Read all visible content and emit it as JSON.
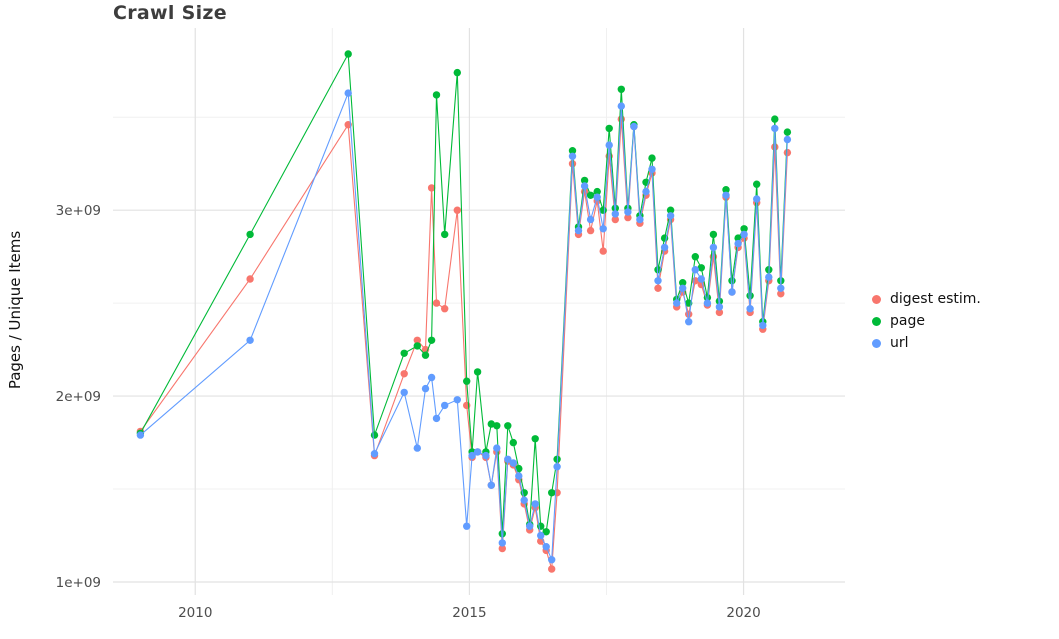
{
  "chart_data": {
    "type": "line",
    "title": "Crawl Size",
    "xlabel": "",
    "ylabel": "Pages / Unique Items",
    "y_unit": 1000000000.0,
    "legend": {
      "position": "right"
    },
    "axes": {
      "xlim": [
        2008.5,
        2021.85
      ],
      "ylim": [
        0.93,
        3.98
      ],
      "x_ticks": [
        {
          "v": 2010,
          "label": "2010"
        },
        {
          "v": 2015,
          "label": "2015"
        },
        {
          "v": 2020,
          "label": "2020"
        }
      ],
      "x_minor": [
        2012.5,
        2017.5
      ],
      "y_ticks": [
        {
          "v": 1,
          "label": "1e+09"
        },
        {
          "v": 2,
          "label": "2e+09"
        },
        {
          "v": 3,
          "label": "3e+09"
        }
      ],
      "y_minor": [
        1.5,
        2.5,
        3.5
      ],
      "grid": true
    },
    "series": [
      {
        "name": "digest estim.",
        "color": "#F8766D",
        "points": [
          [
            2009.0,
            1.81
          ],
          [
            2011.0,
            2.63
          ],
          [
            2012.79,
            3.46
          ],
          [
            2013.27,
            1.68
          ],
          [
            2013.81,
            2.12
          ],
          [
            2014.05,
            2.3
          ],
          [
            2014.2,
            2.25
          ],
          [
            2014.31,
            3.12
          ],
          [
            2014.4,
            2.5
          ],
          [
            2014.55,
            2.47
          ],
          [
            2014.78,
            3.0
          ],
          [
            2014.95,
            1.95
          ],
          [
            2015.05,
            1.67
          ],
          [
            2015.15,
            1.7
          ],
          [
            2015.3,
            1.67
          ],
          [
            2015.4,
            1.52
          ],
          [
            2015.5,
            1.7
          ],
          [
            2015.6,
            1.18
          ],
          [
            2015.7,
            1.65
          ],
          [
            2015.8,
            1.63
          ],
          [
            2015.9,
            1.55
          ],
          [
            2016.0,
            1.42
          ],
          [
            2016.1,
            1.28
          ],
          [
            2016.2,
            1.4
          ],
          [
            2016.3,
            1.22
          ],
          [
            2016.4,
            1.17
          ],
          [
            2016.5,
            1.07
          ],
          [
            2016.6,
            1.48
          ],
          [
            2016.88,
            3.25
          ],
          [
            2016.99,
            2.87
          ],
          [
            2017.1,
            3.1
          ],
          [
            2017.21,
            2.89
          ],
          [
            2017.33,
            3.05
          ],
          [
            2017.44,
            2.78
          ],
          [
            2017.55,
            3.29
          ],
          [
            2017.66,
            2.95
          ],
          [
            2017.77,
            3.49
          ],
          [
            2017.89,
            2.96
          ],
          [
            2018.0,
            3.45
          ],
          [
            2018.11,
            2.93
          ],
          [
            2018.22,
            3.08
          ],
          [
            2018.33,
            3.2
          ],
          [
            2018.44,
            2.58
          ],
          [
            2018.56,
            2.78
          ],
          [
            2018.67,
            2.95
          ],
          [
            2018.78,
            2.48
          ],
          [
            2018.89,
            2.56
          ],
          [
            2019.0,
            2.44
          ],
          [
            2019.12,
            2.62
          ],
          [
            2019.23,
            2.6
          ],
          [
            2019.34,
            2.49
          ],
          [
            2019.45,
            2.75
          ],
          [
            2019.56,
            2.45
          ],
          [
            2019.68,
            3.07
          ],
          [
            2019.79,
            2.56
          ],
          [
            2019.9,
            2.8
          ],
          [
            2020.01,
            2.85
          ],
          [
            2020.12,
            2.45
          ],
          [
            2020.24,
            3.04
          ],
          [
            2020.35,
            2.36
          ],
          [
            2020.46,
            2.62
          ],
          [
            2020.57,
            3.34
          ],
          [
            2020.68,
            2.55
          ],
          [
            2020.8,
            3.31
          ]
        ]
      },
      {
        "name": "page",
        "color": "#00BA38",
        "points": [
          [
            2009.0,
            1.8
          ],
          [
            2011.0,
            2.87
          ],
          [
            2012.79,
            3.84
          ],
          [
            2013.27,
            1.79
          ],
          [
            2013.81,
            2.23
          ],
          [
            2014.05,
            2.27
          ],
          [
            2014.2,
            2.22
          ],
          [
            2014.31,
            2.3
          ],
          [
            2014.4,
            3.62
          ],
          [
            2014.55,
            2.87
          ],
          [
            2014.78,
            3.74
          ],
          [
            2014.95,
            2.08
          ],
          [
            2015.05,
            1.7
          ],
          [
            2015.15,
            2.13
          ],
          [
            2015.3,
            1.7
          ],
          [
            2015.4,
            1.85
          ],
          [
            2015.5,
            1.84
          ],
          [
            2015.6,
            1.26
          ],
          [
            2015.7,
            1.84
          ],
          [
            2015.8,
            1.75
          ],
          [
            2015.9,
            1.61
          ],
          [
            2016.0,
            1.48
          ],
          [
            2016.1,
            1.31
          ],
          [
            2016.2,
            1.77
          ],
          [
            2016.3,
            1.3
          ],
          [
            2016.4,
            1.27
          ],
          [
            2016.5,
            1.48
          ],
          [
            2016.6,
            1.66
          ],
          [
            2016.88,
            3.32
          ],
          [
            2016.99,
            2.91
          ],
          [
            2017.1,
            3.16
          ],
          [
            2017.21,
            3.08
          ],
          [
            2017.33,
            3.1
          ],
          [
            2017.44,
            3.0
          ],
          [
            2017.55,
            3.44
          ],
          [
            2017.66,
            3.01
          ],
          [
            2017.77,
            3.65
          ],
          [
            2017.89,
            3.01
          ],
          [
            2018.0,
            3.46
          ],
          [
            2018.11,
            2.97
          ],
          [
            2018.22,
            3.15
          ],
          [
            2018.33,
            3.28
          ],
          [
            2018.44,
            2.68
          ],
          [
            2018.56,
            2.85
          ],
          [
            2018.67,
            3.0
          ],
          [
            2018.78,
            2.52
          ],
          [
            2018.89,
            2.61
          ],
          [
            2019.0,
            2.5
          ],
          [
            2019.12,
            2.75
          ],
          [
            2019.23,
            2.69
          ],
          [
            2019.34,
            2.53
          ],
          [
            2019.45,
            2.87
          ],
          [
            2019.56,
            2.51
          ],
          [
            2019.68,
            3.11
          ],
          [
            2019.79,
            2.62
          ],
          [
            2019.9,
            2.85
          ],
          [
            2020.01,
            2.9
          ],
          [
            2020.12,
            2.54
          ],
          [
            2020.24,
            3.14
          ],
          [
            2020.35,
            2.4
          ],
          [
            2020.46,
            2.68
          ],
          [
            2020.57,
            3.49
          ],
          [
            2020.68,
            2.62
          ],
          [
            2020.8,
            3.42
          ]
        ]
      },
      {
        "name": "url",
        "color": "#619CFF",
        "points": [
          [
            2009.0,
            1.79
          ],
          [
            2011.0,
            2.3
          ],
          [
            2012.79,
            3.63
          ],
          [
            2013.27,
            1.69
          ],
          [
            2013.81,
            2.02
          ],
          [
            2014.05,
            1.72
          ],
          [
            2014.2,
            2.04
          ],
          [
            2014.31,
            2.1
          ],
          [
            2014.4,
            1.88
          ],
          [
            2014.55,
            1.95
          ],
          [
            2014.78,
            1.98
          ],
          [
            2014.95,
            1.3
          ],
          [
            2015.05,
            1.68
          ],
          [
            2015.15,
            1.7
          ],
          [
            2015.3,
            1.68
          ],
          [
            2015.4,
            1.52
          ],
          [
            2015.5,
            1.72
          ],
          [
            2015.6,
            1.21
          ],
          [
            2015.7,
            1.66
          ],
          [
            2015.8,
            1.64
          ],
          [
            2015.9,
            1.57
          ],
          [
            2016.0,
            1.44
          ],
          [
            2016.1,
            1.3
          ],
          [
            2016.2,
            1.42
          ],
          [
            2016.3,
            1.25
          ],
          [
            2016.4,
            1.19
          ],
          [
            2016.5,
            1.12
          ],
          [
            2016.6,
            1.62
          ],
          [
            2016.88,
            3.29
          ],
          [
            2016.99,
            2.89
          ],
          [
            2017.1,
            3.13
          ],
          [
            2017.21,
            2.95
          ],
          [
            2017.33,
            3.07
          ],
          [
            2017.44,
            2.9
          ],
          [
            2017.55,
            3.35
          ],
          [
            2017.66,
            2.98
          ],
          [
            2017.77,
            3.56
          ],
          [
            2017.89,
            2.99
          ],
          [
            2018.0,
            3.45
          ],
          [
            2018.11,
            2.95
          ],
          [
            2018.22,
            3.1
          ],
          [
            2018.33,
            3.22
          ],
          [
            2018.44,
            2.62
          ],
          [
            2018.56,
            2.8
          ],
          [
            2018.67,
            2.97
          ],
          [
            2018.78,
            2.5
          ],
          [
            2018.89,
            2.58
          ],
          [
            2019.0,
            2.4
          ],
          [
            2019.12,
            2.68
          ],
          [
            2019.23,
            2.63
          ],
          [
            2019.34,
            2.5
          ],
          [
            2019.45,
            2.8
          ],
          [
            2019.56,
            2.48
          ],
          [
            2019.68,
            3.08
          ],
          [
            2019.79,
            2.56
          ],
          [
            2019.9,
            2.82
          ],
          [
            2020.01,
            2.87
          ],
          [
            2020.12,
            2.47
          ],
          [
            2020.24,
            3.06
          ],
          [
            2020.35,
            2.38
          ],
          [
            2020.46,
            2.64
          ],
          [
            2020.57,
            3.44
          ],
          [
            2020.68,
            2.58
          ],
          [
            2020.8,
            3.38
          ]
        ]
      }
    ]
  },
  "style": {
    "grid_major_color": "#e2e2e2",
    "grid_minor_color": "#f0f0f0",
    "tick_label_color": "#4d4d4d"
  }
}
